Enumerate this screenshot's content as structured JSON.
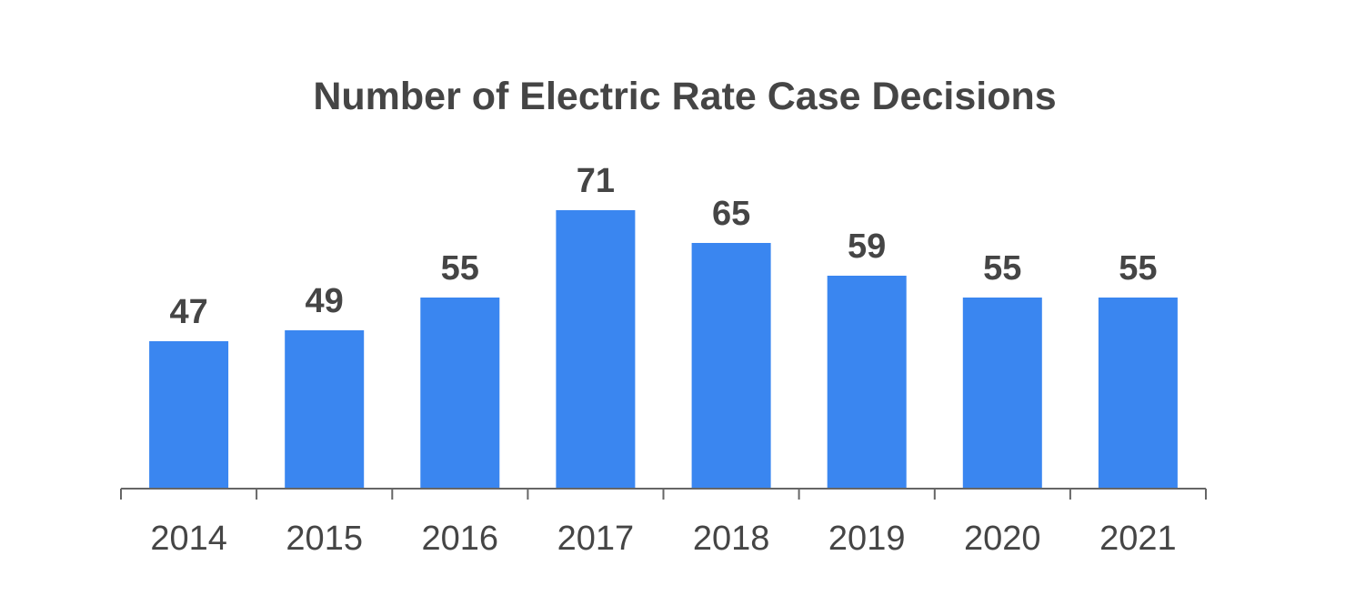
{
  "chart_data": {
    "type": "bar",
    "title": "Number of Electric Rate Case Decisions",
    "xlabel": "",
    "ylabel": "",
    "categories": [
      "2014",
      "2015",
      "2016",
      "2017",
      "2018",
      "2019",
      "2020",
      "2021"
    ],
    "values": [
      47,
      49,
      55,
      71,
      65,
      59,
      55,
      55
    ],
    "data_labels": [
      "47",
      "49",
      "55",
      "71",
      "65",
      "59",
      "55",
      "55"
    ],
    "ylim": [
      20,
      75
    ],
    "grid": false,
    "legend": "none",
    "colors": {
      "bar": "#3a86f0",
      "axis": "#666666",
      "text": "#454545"
    }
  }
}
